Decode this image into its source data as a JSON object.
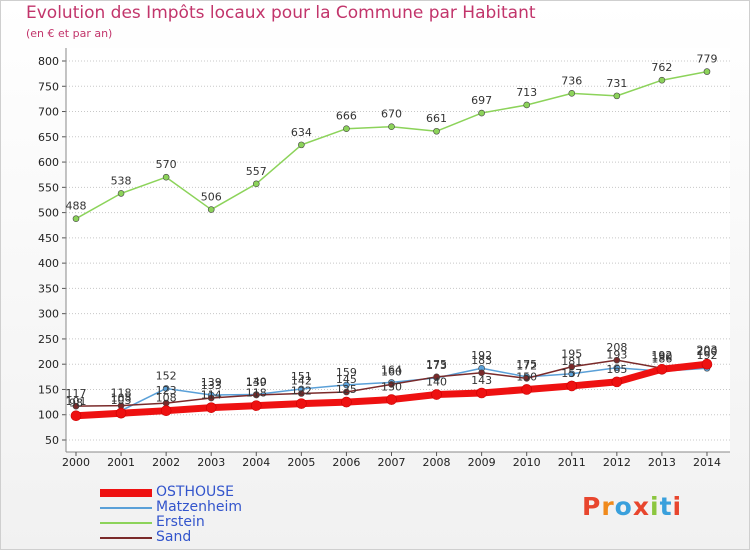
{
  "title": "Evolution des Impôts locaux pour la Commune par Habitant",
  "subtitle": "(en € et par an)",
  "chart_data": {
    "type": "line",
    "title": "Evolution des Impôts locaux pour la Commune par Habitant",
    "subtitle": "(en € et par an)",
    "xlabel": "",
    "ylabel": "",
    "ylim": [
      50,
      800
    ],
    "yticks": [
      50,
      100,
      150,
      200,
      250,
      300,
      350,
      400,
      450,
      500,
      550,
      600,
      650,
      700,
      750,
      800
    ],
    "grid": "horizontal dotted",
    "legend_position": "bottom-left",
    "x": [
      2000,
      2001,
      2002,
      2003,
      2004,
      2005,
      2006,
      2007,
      2008,
      2009,
      2010,
      2011,
      2012,
      2013,
      2014
    ],
    "series": [
      {
        "name": "Erstein",
        "color": "#8cd35a",
        "width": 1.5,
        "values": [
          488,
          538,
          570,
          506,
          557,
          634,
          666,
          670,
          661,
          697,
          713,
          736,
          731,
          762,
          779
        ],
        "labels": [
          "488",
          "538",
          "570",
          "506",
          "557",
          "634",
          "666",
          "670",
          "661",
          "697",
          "713",
          "736",
          "731",
          "762",
          "779"
        ]
      },
      {
        "name": "Matzenheim",
        "color": "#5aa0d8",
        "width": 1.5,
        "values": [
          101,
          108,
          152,
          139,
          140,
          151,
          159,
          164,
          173,
          192,
          175,
          181,
          193,
          186,
          192
        ],
        "labels": [
          "101",
          "108",
          "152",
          "139",
          "140",
          "151",
          "159",
          "164",
          "173",
          "192",
          "175",
          "181",
          "193",
          "186",
          "192"
        ]
      },
      {
        "name": "Sand",
        "color": "#7a2a2a",
        "width": 1.5,
        "values": [
          117,
          118,
          123,
          133,
          139,
          142,
          145,
          160,
          175,
          183,
          172,
          195,
          208,
          192,
          203
        ],
        "labels": [
          "117",
          "118",
          "123",
          "133",
          "139",
          "142",
          "145",
          "160",
          "175",
          "183",
          "172",
          "195",
          "208",
          "192",
          "203"
        ]
      },
      {
        "name": "OSTHOUSE",
        "color": "#ee1111",
        "width": 7,
        "values": [
          98,
          103,
          108,
          114,
          118,
          122,
          125,
          130,
          140,
          143,
          150,
          157,
          165,
          190,
          200
        ],
        "labels": [
          "98",
          "103",
          "108",
          "114",
          "118",
          "122",
          "125",
          "130",
          "140",
          "143",
          "150",
          "157",
          "165",
          "190",
          "200"
        ]
      }
    ]
  },
  "legend": [
    {
      "name": "OSTHOUSE",
      "color": "#ee1111"
    },
    {
      "name": "Matzenheim",
      "color": "#5aa0d8"
    },
    {
      "name": "Erstein",
      "color": "#8cd35a"
    },
    {
      "name": "Sand",
      "color": "#7a2a2a"
    }
  ],
  "logo": {
    "text": "Proxiti",
    "colors": [
      "#e8462e",
      "#f08a1c",
      "#3aa0dc",
      "#e8462e",
      "#8cc63f",
      "#3aa0dc",
      "#e8462e"
    ]
  }
}
